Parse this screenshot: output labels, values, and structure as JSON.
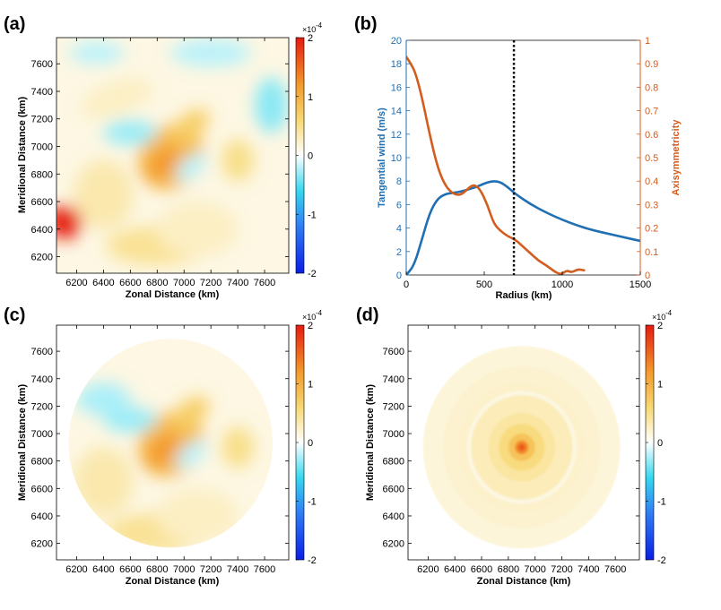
{
  "chart_data": [
    {
      "panel": "(a)",
      "type": "heatmap",
      "xlabel": "Zonal Distance (km)",
      "ylabel": "Meridional Distance (km)",
      "xlim": [
        6050,
        7780
      ],
      "ylim": [
        6080,
        7790
      ],
      "xticks": [
        "6200",
        "6400",
        "6600",
        "6800",
        "7000",
        "7200",
        "7400",
        "7600"
      ],
      "yticks": [
        "6200",
        "6400",
        "6600",
        "6800",
        "7000",
        "7200",
        "7400",
        "7600"
      ],
      "clim": [
        -2,
        2
      ],
      "colorbar_ticks": [
        "2",
        "1",
        "0",
        "-1",
        "-2"
      ],
      "colorbar_exponent_base": "×10",
      "colorbar_exponent": "-4",
      "mask": "none",
      "blobs": [
        {
          "x": 6900,
          "y": 6920,
          "rx": 260,
          "ry": 220,
          "value": 0.9,
          "rot": -45
        },
        {
          "x": 6850,
          "y": 6880,
          "rx": 150,
          "ry": 90,
          "value": 1.2,
          "rot": -45
        },
        {
          "x": 7050,
          "y": 7150,
          "rx": 160,
          "ry": 90,
          "value": 0.7,
          "rot": -40
        },
        {
          "x": 6110,
          "y": 6450,
          "rx": 130,
          "ry": 120,
          "value": 2.0,
          "rot": 0
        },
        {
          "x": 6400,
          "y": 6650,
          "rx": 220,
          "ry": 250,
          "value": 0.35,
          "rot": 0
        },
        {
          "x": 6800,
          "y": 6280,
          "rx": 380,
          "ry": 140,
          "value": 0.45,
          "rot": 0
        },
        {
          "x": 7400,
          "y": 6900,
          "rx": 120,
          "ry": 150,
          "value": 0.5,
          "rot": 0
        },
        {
          "x": 6500,
          "y": 7350,
          "rx": 280,
          "ry": 120,
          "value": 0.25,
          "rot": -20
        },
        {
          "x": 7100,
          "y": 6400,
          "rx": 300,
          "ry": 200,
          "value": 0.25,
          "rot": 0
        },
        {
          "x": 7650,
          "y": 7300,
          "rx": 120,
          "ry": 200,
          "value": -0.35,
          "rot": 0
        },
        {
          "x": 6600,
          "y": 7100,
          "rx": 200,
          "ry": 90,
          "value": -0.3,
          "rot": 0
        },
        {
          "x": 7200,
          "y": 7680,
          "rx": 300,
          "ry": 100,
          "value": -0.2,
          "rot": 0
        },
        {
          "x": 6350,
          "y": 7680,
          "rx": 200,
          "ry": 80,
          "value": -0.2,
          "rot": 0
        },
        {
          "x": 7050,
          "y": 6850,
          "rx": 140,
          "ry": 70,
          "value": -0.2,
          "rot": -40
        }
      ]
    },
    {
      "panel": "(b)",
      "type": "line",
      "xlabel": "Radius (km)",
      "ylabel": "Tangential wind (m/s)",
      "ylabel_right": "Axisymmetricity",
      "xlim": [
        0,
        1500
      ],
      "ylim": [
        0,
        20
      ],
      "ylim_right": [
        0,
        1
      ],
      "xticks": [
        "0",
        "500",
        "1000",
        "1500"
      ],
      "yticks": [
        "0",
        "2",
        "4",
        "6",
        "8",
        "10",
        "12",
        "14",
        "16",
        "18",
        "20"
      ],
      "yticks_right": [
        "0",
        "0.1",
        "0.2",
        "0.3",
        "0.4",
        "0.5",
        "0.6",
        "0.7",
        "0.8",
        "0.9",
        "1"
      ],
      "vline_x": 690,
      "series": [
        {
          "name": "Tangential wind",
          "axis": "left",
          "color": "#1f6fb2",
          "x": [
            0,
            50,
            100,
            150,
            200,
            250,
            300,
            350,
            400,
            450,
            500,
            550,
            600,
            650,
            700,
            800,
            900,
            1000,
            1100,
            1200,
            1300,
            1400,
            1500
          ],
          "y": [
            0,
            0.8,
            3.0,
            5.3,
            6.5,
            6.9,
            7.0,
            7.1,
            7.3,
            7.5,
            7.8,
            8.0,
            7.95,
            7.5,
            6.9,
            6.0,
            5.3,
            4.7,
            4.2,
            3.8,
            3.5,
            3.2,
            2.9
          ]
        },
        {
          "name": "Axisymmetricity",
          "axis": "right",
          "color": "#d35d1e",
          "x": [
            0,
            30,
            60,
            100,
            150,
            200,
            250,
            300,
            350,
            400,
            430,
            470,
            520,
            560,
            600,
            650,
            700,
            750,
            800,
            850,
            900,
            950,
            980,
            1000,
            1030,
            1060,
            1100,
            1140
          ],
          "y": [
            0.93,
            0.9,
            0.86,
            0.76,
            0.6,
            0.46,
            0.38,
            0.345,
            0.34,
            0.37,
            0.385,
            0.37,
            0.3,
            0.22,
            0.19,
            0.165,
            0.15,
            0.12,
            0.09,
            0.06,
            0.04,
            0.015,
            0.005,
            0.005,
            0.02,
            0.01,
            0.025,
            0.02
          ]
        }
      ]
    },
    {
      "panel": "(c)",
      "type": "heatmap",
      "xlabel": "Zonal Distance (km)",
      "ylabel": "Meridional Distance (km)",
      "xlim": [
        6050,
        7780
      ],
      "ylim": [
        6080,
        7790
      ],
      "xticks": [
        "6200",
        "6400",
        "6600",
        "6800",
        "7000",
        "7200",
        "7400",
        "7600"
      ],
      "yticks": [
        "6200",
        "6400",
        "6600",
        "6800",
        "7000",
        "7200",
        "7400",
        "7600"
      ],
      "clim": [
        -2,
        2
      ],
      "colorbar_ticks": [
        "2",
        "1",
        "0",
        "-1",
        "-2"
      ],
      "colorbar_exponent_base": "×10",
      "colorbar_exponent": "-4",
      "mask": "circle",
      "mask_center": [
        6900,
        6930
      ],
      "mask_radius": 760,
      "blobs": [
        {
          "x": 6900,
          "y": 6920,
          "rx": 260,
          "ry": 220,
          "value": 0.9,
          "rot": -45
        },
        {
          "x": 6850,
          "y": 6880,
          "rx": 150,
          "ry": 90,
          "value": 1.2,
          "rot": -45
        },
        {
          "x": 7050,
          "y": 7150,
          "rx": 160,
          "ry": 90,
          "value": 0.7,
          "rot": -40
        },
        {
          "x": 6400,
          "y": 6650,
          "rx": 220,
          "ry": 250,
          "value": 0.35,
          "rot": 0
        },
        {
          "x": 6800,
          "y": 6280,
          "rx": 380,
          "ry": 140,
          "value": 0.45,
          "rot": 0
        },
        {
          "x": 7400,
          "y": 6900,
          "rx": 120,
          "ry": 150,
          "value": 0.5,
          "rot": 0
        },
        {
          "x": 7100,
          "y": 6400,
          "rx": 300,
          "ry": 200,
          "value": 0.25,
          "rot": 0
        },
        {
          "x": 6600,
          "y": 7100,
          "rx": 200,
          "ry": 90,
          "value": -0.3,
          "rot": 0
        },
        {
          "x": 6400,
          "y": 7250,
          "rx": 200,
          "ry": 120,
          "value": -0.25,
          "rot": 0
        },
        {
          "x": 7050,
          "y": 6850,
          "rx": 140,
          "ry": 70,
          "value": -0.2,
          "rot": -40
        }
      ]
    },
    {
      "panel": "(d)",
      "type": "heatmap",
      "xlabel": "Zonal Distance (km)",
      "ylabel": "Meridional Distance (km)",
      "xlim": [
        6050,
        7780
      ],
      "ylim": [
        6080,
        7790
      ],
      "xticks": [
        "6200",
        "6400",
        "6600",
        "6800",
        "7000",
        "7200",
        "7400",
        "7600"
      ],
      "yticks": [
        "6200",
        "6400",
        "6600",
        "6800",
        "7000",
        "7200",
        "7400",
        "7600"
      ],
      "clim": [
        -2,
        2
      ],
      "colorbar_ticks": [
        "2",
        "1",
        "0",
        "-1",
        "-2"
      ],
      "colorbar_exponent_base": "×10",
      "colorbar_exponent": "-4",
      "mask": "circle",
      "mask_center": [
        6900,
        6900
      ],
      "mask_radius": 740,
      "axisymmetric": true,
      "center": [
        6900,
        6900
      ],
      "rings": [
        {
          "r": 740,
          "value": 0.16
        },
        {
          "r": 590,
          "value": 0.2
        },
        {
          "r": 470,
          "value": 0.22
        },
        {
          "r": 410,
          "value": 0.12
        },
        {
          "r": 380,
          "value": 0.3
        },
        {
          "r": 250,
          "value": 0.4
        },
        {
          "r": 170,
          "value": 0.55
        },
        {
          "r": 100,
          "value": 0.8
        },
        {
          "r": 50,
          "value": 1.3
        },
        {
          "r": 25,
          "value": 1.6
        }
      ]
    }
  ]
}
